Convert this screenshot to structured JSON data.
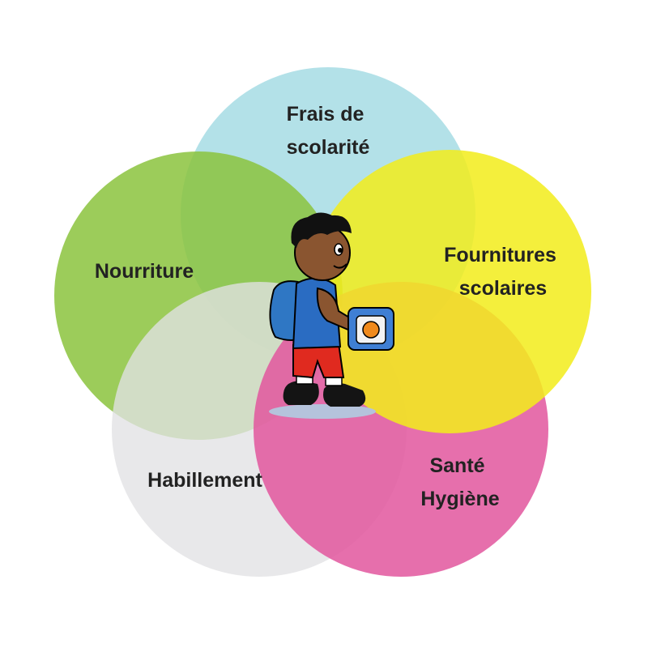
{
  "diagram": {
    "type": "venn",
    "circles": [
      {
        "id": "frais",
        "lines": [
          "Frais de",
          "scolarité"
        ],
        "color": "#a8dde5"
      },
      {
        "id": "fournitures",
        "lines": [
          "Fournitures",
          "scolaires"
        ],
        "color": "#f2ec1c"
      },
      {
        "id": "sante",
        "lines": [
          "Santé",
          "Hygiène"
        ],
        "color": "#e2579e"
      },
      {
        "id": "habillement",
        "lines": [
          "Habillement"
        ],
        "color": "#e2e2e4"
      },
      {
        "id": "nourriture",
        "lines": [
          "Nourriture"
        ],
        "color": "#8cc43f"
      }
    ],
    "center_illustration": "schoolboy-with-backpack-and-lunchbox"
  }
}
